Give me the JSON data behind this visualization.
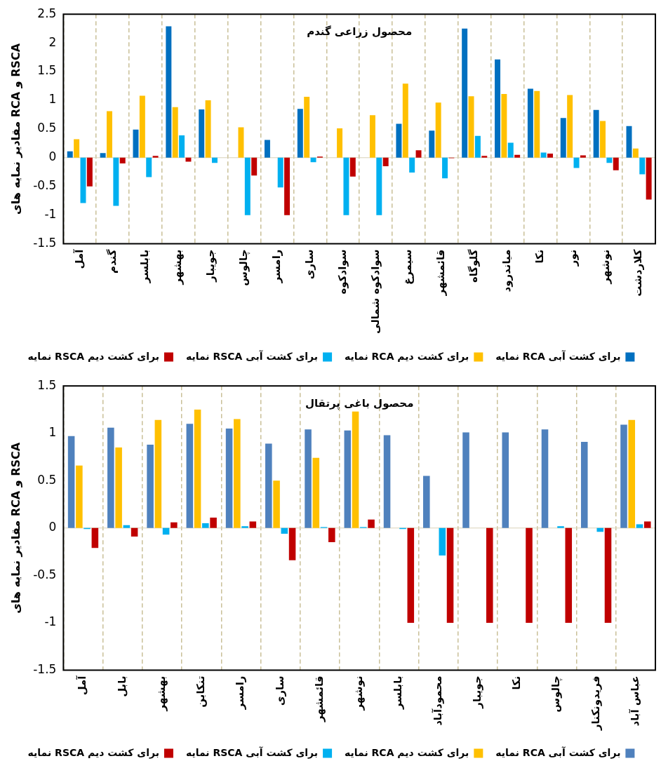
{
  "chart_data": [
    {
      "type": "bar",
      "title": "محصول زراعی گندم",
      "ylabel": "مقادیر نمایه های RCA و RSCA",
      "categories": [
        "آمل",
        "گندم",
        "بابلسر",
        "بهشهر",
        "جویبار",
        "چالوس",
        "رامسر",
        "ساری",
        "سوادکوه",
        "سوادکوه شمالی",
        "سیمرغ",
        "قائمشهر",
        "گلوگاه",
        "میاندرود",
        "نکا",
        "نور",
        "نوشهر",
        "کلاردشت"
      ],
      "series": [
        {
          "name": "نمایه RCA برای کشت آبی",
          "color": "#0070c0",
          "values": [
            0.11,
            0.08,
            0.49,
            2.29,
            0.84,
            null,
            0.31,
            0.85,
            null,
            null,
            0.59,
            0.47,
            2.25,
            1.71,
            1.2,
            0.69,
            0.83,
            0.55
          ]
        },
        {
          "name": "نمایه RCA برای کشت دیم",
          "color": "#ffc000",
          "values": [
            0.32,
            0.81,
            1.08,
            0.88,
            1.0,
            0.53,
            null,
            1.06,
            0.51,
            0.74,
            1.29,
            0.96,
            1.07,
            1.11,
            1.16,
            1.09,
            0.64,
            0.16
          ]
        },
        {
          "name": "نمایه RSCA برای کشت آبی",
          "color": "#00b0f0",
          "values": [
            -0.79,
            -0.84,
            -0.34,
            0.39,
            -0.09,
            -1.0,
            -0.52,
            -0.08,
            -1.0,
            -1.0,
            -0.26,
            -0.36,
            0.38,
            0.26,
            0.09,
            -0.18,
            -0.09,
            -0.29
          ]
        },
        {
          "name": "نمایه RSCA برای کشت دیم",
          "color": "#c00000",
          "values": [
            -0.5,
            -0.1,
            0.03,
            -0.07,
            null,
            -0.31,
            -1.0,
            0.02,
            -0.33,
            -0.15,
            0.13,
            -0.01,
            0.03,
            0.05,
            0.07,
            0.04,
            -0.22,
            -0.73
          ]
        }
      ],
      "ylim": [
        -1.5,
        2.5
      ],
      "yticks": [
        -1.5,
        -1,
        -0.5,
        0,
        0.5,
        1,
        1.5,
        2,
        2.5
      ],
      "grid": "x",
      "legend": "bottom"
    },
    {
      "type": "bar",
      "title": "محصول باغی پرتقال",
      "ylabel": "مقادیر نمایه های RCA و RSCA",
      "categories": [
        "آمل",
        "بابل",
        "بهشهر",
        "تنکابن",
        "رامسر",
        "ساری",
        "قائمشهر",
        "نوشهر",
        "بابلسر",
        "محمودآباد",
        "جویبار",
        "نکا",
        "چالوس",
        "فریدونکنار",
        "عباس آباد"
      ],
      "series": [
        {
          "name": "نمایه RCA برای کشت آبی",
          "color": "#4f81bd",
          "values": [
            0.97,
            1.06,
            0.88,
            1.1,
            1.05,
            0.89,
            1.04,
            1.03,
            0.98,
            0.55,
            1.01,
            1.01,
            1.04,
            0.91,
            1.09
          ]
        },
        {
          "name": "نمایه RCA برای کشت دیم",
          "color": "#ffc000",
          "values": [
            0.66,
            0.85,
            1.14,
            1.25,
            1.15,
            0.5,
            0.74,
            1.23,
            null,
            null,
            null,
            null,
            null,
            null,
            1.14
          ]
        },
        {
          "name": "نمایه RSCA برای کشت آبی",
          "color": "#00b0f0",
          "values": [
            -0.01,
            0.03,
            -0.07,
            0.05,
            0.02,
            -0.06,
            0.01,
            0.01,
            -0.01,
            -0.29,
            null,
            null,
            0.02,
            -0.04,
            0.04
          ]
        },
        {
          "name": "نمایه RSCA برای کشت دیم",
          "color": "#c00000",
          "values": [
            -0.21,
            -0.09,
            0.06,
            0.11,
            0.07,
            -0.34,
            -0.15,
            0.09,
            -1.0,
            -1.0,
            -1.0,
            -1.0,
            -1.0,
            -1.0,
            0.07
          ]
        }
      ],
      "ylim": [
        -1.5,
        1.5
      ],
      "yticks": [
        -1.5,
        -1,
        -0.5,
        0,
        0.5,
        1,
        1.5
      ],
      "grid": "x",
      "legend": "bottom"
    }
  ]
}
